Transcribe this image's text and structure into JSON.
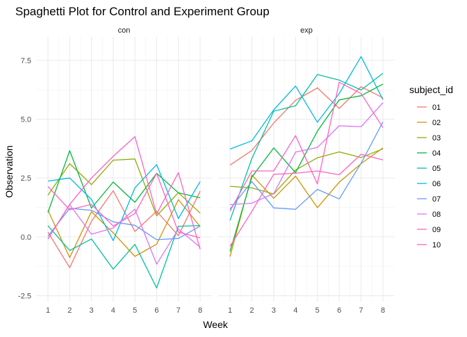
{
  "chart_data": {
    "type": "line",
    "title": "Spaghetti Plot for Control and Experiment Group",
    "xlabel": "Week",
    "ylabel": "Observation",
    "x": [
      1,
      2,
      3,
      4,
      5,
      6,
      7,
      8
    ],
    "xticks": [
      "1",
      "2",
      "3",
      "4",
      "5",
      "6",
      "7",
      "8"
    ],
    "yticks": [
      -2.5,
      0.0,
      2.5,
      5.0,
      7.5
    ],
    "ytick_labels": [
      "-2.5",
      "0.0",
      "2.5",
      "5.0",
      "7.5"
    ],
    "ylim": [
      -2.75,
      8.5
    ],
    "grid": true,
    "legend": {
      "title": "subject_id",
      "position": "right",
      "entries": [
        "01",
        "02",
        "03",
        "04",
        "05",
        "06",
        "07",
        "08",
        "09",
        "10"
      ]
    },
    "colors": {
      "01": "#F8766D",
      "02": "#D39200",
      "03": "#93AA00",
      "04": "#00BA38",
      "05": "#00C19F",
      "06": "#00B9E3",
      "07": "#619CFF",
      "08": "#DB72FB",
      "09": "#FF61C3",
      "10": "#FF61C3"
    },
    "panels": [
      {
        "label": "con",
        "series": [
          {
            "name": "01",
            "values": [
              0.2,
              -1.31,
              0.66,
              1.96,
              0.23,
              1.09,
              0.05,
              1.94
            ]
          },
          {
            "name": "02",
            "values": [
              1.13,
              -0.88,
              1.07,
              0.17,
              -0.83,
              -0.31,
              1.58,
              0.44
            ]
          },
          {
            "name": "03",
            "values": [
              1.77,
              3.11,
              2.22,
              3.26,
              3.31,
              0.89,
              1.88,
              1.01
            ]
          },
          {
            "name": "04",
            "values": [
              1.04,
              3.66,
              1.22,
              2.33,
              1.47,
              2.7,
              1.87,
              1.66
            ]
          },
          {
            "name": "05",
            "values": [
              0.47,
              -0.58,
              -0.09,
              -1.37,
              -0.32,
              -2.17,
              0.45,
              0.48
            ]
          },
          {
            "name": "06",
            "values": [
              2.37,
              2.5,
              1.59,
              -0.16,
              2.08,
              3.07,
              0.78,
              2.35
            ]
          },
          {
            "name": "07",
            "values": [
              0.03,
              1.21,
              1.13,
              0.64,
              0.49,
              -0.12,
              -0.07,
              0.46
            ]
          },
          {
            "name": "08",
            "values": [
              -0.09,
              1.37,
              0.11,
              0.38,
              1.18,
              -1.16,
              0.33,
              -0.44
            ]
          },
          {
            "name": "09",
            "values": [
              2.14,
              1.15,
              1.38,
              0.46,
              0.99,
              2.7,
              0.2,
              -0.04
            ]
          },
          {
            "name": "10",
            "values": [
              -0.09,
              1.38,
              2.5,
              3.42,
              4.26,
              0.97,
              2.73,
              -0.53
            ]
          }
        ]
      },
      {
        "label": "exp",
        "series": [
          {
            "name": "01",
            "values": [
              3.05,
              3.67,
              4.84,
              5.8,
              6.33,
              5.46,
              6.38,
              5.91
            ]
          },
          {
            "name": "02",
            "values": [
              -0.84,
              2.63,
              1.64,
              2.58,
              1.24,
              2.32,
              3.11,
              3.78
            ]
          },
          {
            "name": "03",
            "values": [
              2.15,
              2.08,
              1.82,
              2.84,
              3.36,
              3.61,
              3.37,
              3.74
            ]
          },
          {
            "name": "04",
            "values": [
              -0.62,
              2.54,
              3.78,
              2.73,
              4.49,
              5.82,
              6.0,
              6.49
            ]
          },
          {
            "name": "05",
            "values": [
              0.7,
              3.33,
              5.34,
              5.57,
              6.9,
              6.66,
              6.24,
              6.95
            ]
          },
          {
            "name": "06",
            "values": [
              3.73,
              4.08,
              5.4,
              6.41,
              4.87,
              6.09,
              7.66,
              5.83
            ]
          },
          {
            "name": "07",
            "values": [
              1.18,
              2.35,
              1.23,
              1.17,
              2.02,
              1.61,
              3.13,
              4.88
            ]
          },
          {
            "name": "08",
            "values": [
              1.37,
              1.43,
              1.84,
              3.6,
              3.8,
              4.72,
              4.68,
              5.7
            ]
          },
          {
            "name": "09",
            "values": [
              -0.4,
              1.08,
              2.66,
              2.7,
              2.8,
              2.64,
              3.51,
              3.27
            ]
          },
          {
            "name": "10",
            "values": [
              1.09,
              2.8,
              2.8,
              4.3,
              2.25,
              6.57,
              6.09,
              4.64
            ]
          }
        ]
      }
    ]
  }
}
